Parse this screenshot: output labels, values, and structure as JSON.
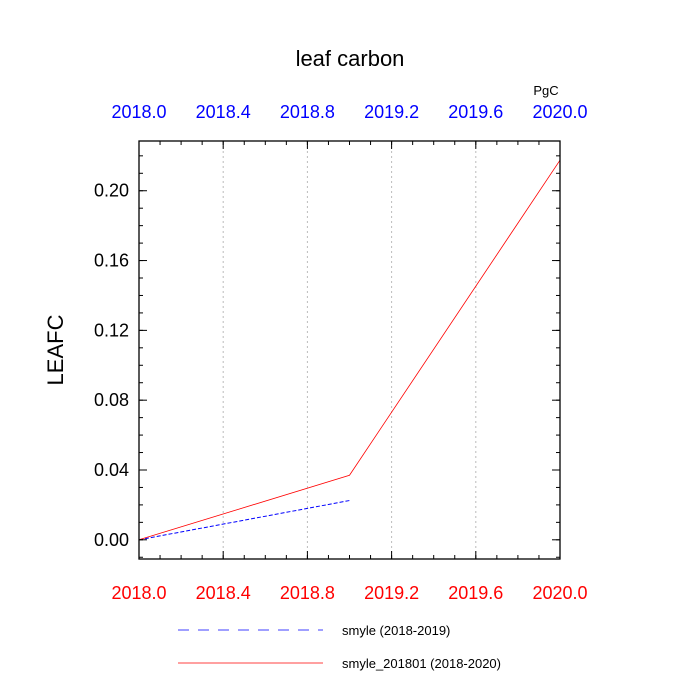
{
  "chart_data": {
    "type": "line",
    "title": "leaf carbon",
    "units": "PgC",
    "ylabel": "LEAFC",
    "xlabel": "",
    "xlim": [
      2018.0,
      2020.0
    ],
    "ylim": [
      -0.011,
      0.2285
    ],
    "x_ticks": [
      "2018.0",
      "2018.4",
      "2018.8",
      "2019.2",
      "2019.6",
      "2020.0"
    ],
    "y_ticks": [
      "0.00",
      "0.04",
      "0.08",
      "0.12",
      "0.16",
      "0.20"
    ],
    "grid": "vertical dotted",
    "legend_position": "bottom",
    "series": [
      {
        "name": "smyle (2018-2019)",
        "color": "#0000ff",
        "dash": "dashed",
        "x": [
          2018.0,
          2019.0
        ],
        "y": [
          0.0,
          0.0225
        ]
      },
      {
        "name": "smyle_201801 (2018-2020)",
        "color": "#ff0000",
        "dash": "solid",
        "x": [
          2018.0,
          2019.0,
          2020.0
        ],
        "y": [
          0.0,
          0.037,
          0.2175
        ]
      }
    ],
    "colors": {
      "top_axis_labels": "#0000ff",
      "bottom_axis_labels": "#ff0000",
      "left_axis_labels": "#000000"
    }
  }
}
